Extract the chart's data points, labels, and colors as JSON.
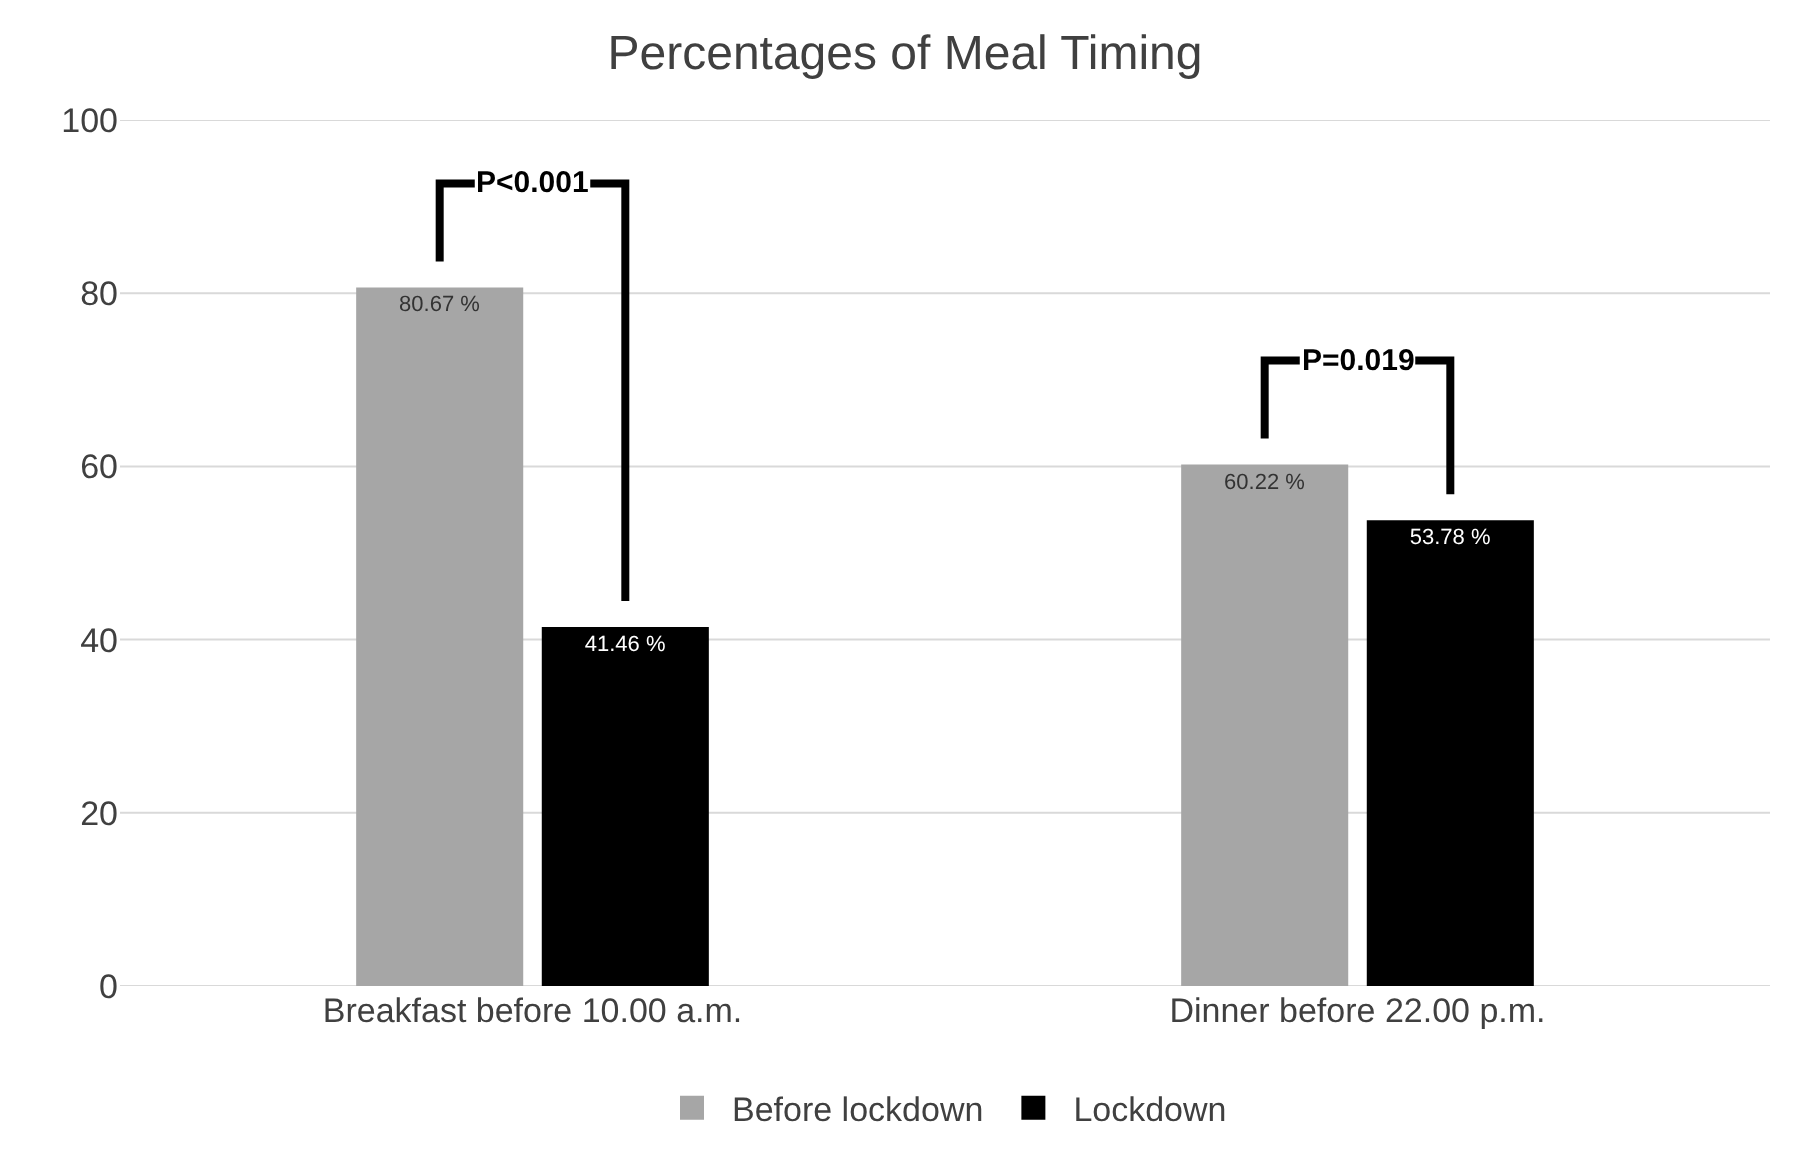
{
  "chart_data": {
    "type": "bar",
    "title": "Percentages of Meal Timing",
    "categories": [
      "Breakfast before 10.00 a.m.",
      "Dinner before 22.00 p.m."
    ],
    "series": [
      {
        "name": "Before lockdown",
        "color": "#a6a6a6",
        "values": [
          80.67,
          60.22
        ],
        "value_labels": [
          "80.67 %",
          "60.22 %"
        ]
      },
      {
        "name": "Lockdown",
        "color": "#000000",
        "values": [
          41.46,
          53.78
        ],
        "value_labels": [
          "41.46 %",
          "53.78 %"
        ]
      }
    ],
    "ylim": [
      0,
      100
    ],
    "yticks": [
      0,
      20,
      40,
      60,
      80,
      100
    ],
    "grid": "y",
    "legend": "bottom",
    "annotations": [
      "P<0.001",
      "P=0.019"
    ]
  }
}
